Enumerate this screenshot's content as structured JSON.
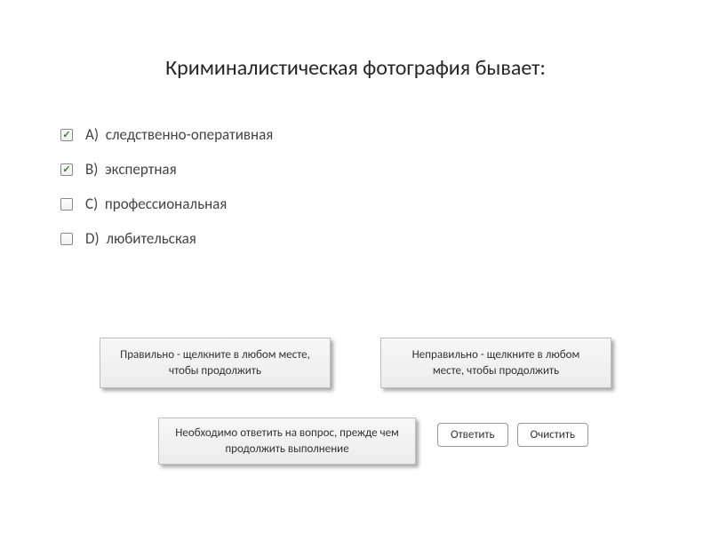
{
  "question": {
    "title": "Криминалистическая фотография бывает:"
  },
  "options": [
    {
      "letter": "A)",
      "text": "следственно-оперативная",
      "checked": true
    },
    {
      "letter": "B)",
      "text": "экспертная",
      "checked": true
    },
    {
      "letter": "C)",
      "text": "профессиональная",
      "checked": false
    },
    {
      "letter": "D)",
      "text": "любительская",
      "checked": false
    }
  ],
  "feedback": {
    "correct": "Правильно - щелкните в любом месте, чтобы продолжить",
    "incorrect": "Неправильно - щелкните в любом месте, чтобы продолжить"
  },
  "prompt": "Необходимо ответить на вопрос, прежде чем продолжить выполнение",
  "buttons": {
    "submit": "Ответить",
    "clear": "Очистить"
  },
  "colors": {
    "background": "#ffffff",
    "text": "#333333",
    "title": "#262626",
    "checkmark": "#3a7a2a",
    "box_bg_top": "#f7f7f7",
    "box_bg_bottom": "#ececec",
    "box_border": "#bfbfbf",
    "button_border": "#999999"
  }
}
